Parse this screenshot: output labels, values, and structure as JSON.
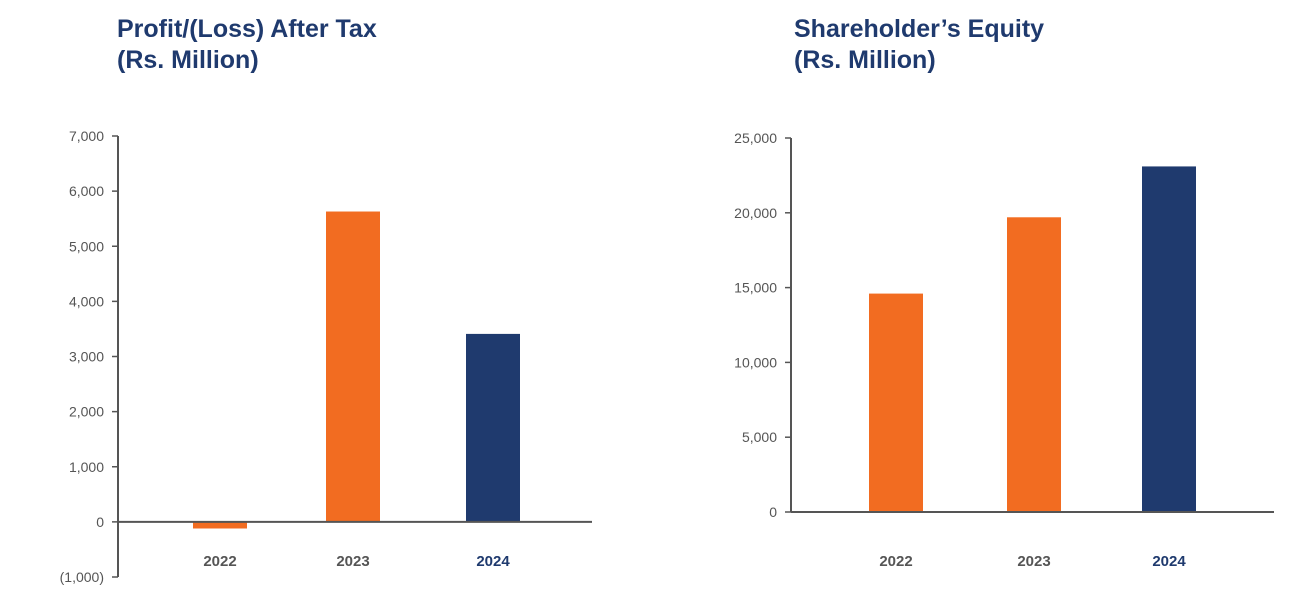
{
  "colors": {
    "orange": "#f26c21",
    "navy": "#1f3a6e",
    "axis": "#555555",
    "title": "#1f3a6e"
  },
  "chart_data": [
    {
      "type": "bar",
      "title": "Profit/(Loss) After Tax",
      "subtitle": "(Rs. Million)",
      "categories": [
        "2022",
        "2023",
        "2024"
      ],
      "values": [
        -120,
        5630,
        3410
      ],
      "bar_colors": [
        "#f26c21",
        "#f26c21",
        "#1f3a6e"
      ],
      "ylim": [
        -1000,
        7000
      ],
      "yticks": [
        -1000,
        0,
        1000,
        2000,
        3000,
        4000,
        5000,
        6000,
        7000
      ],
      "ytick_labels": [
        "(1,000)",
        "0",
        "1,000",
        "2,000",
        "3,000",
        "4,000",
        "5,000",
        "6,000",
        "7,000"
      ],
      "xlabel": "",
      "ylabel": "",
      "grid": false,
      "highlight_category": "2024"
    },
    {
      "type": "bar",
      "title": "Shareholder’s Equity",
      "subtitle": "(Rs. Million)",
      "categories": [
        "2022",
        "2023",
        "2024"
      ],
      "values": [
        14600,
        19700,
        23100
      ],
      "bar_colors": [
        "#f26c21",
        "#f26c21",
        "#1f3a6e"
      ],
      "ylim": [
        0,
        25000
      ],
      "yticks": [
        0,
        5000,
        10000,
        15000,
        20000,
        25000
      ],
      "ytick_labels": [
        "0",
        "5,000",
        "10,000",
        "15,000",
        "20,000",
        "25,000"
      ],
      "xlabel": "",
      "ylabel": "",
      "grid": false,
      "highlight_category": "2024"
    }
  ]
}
